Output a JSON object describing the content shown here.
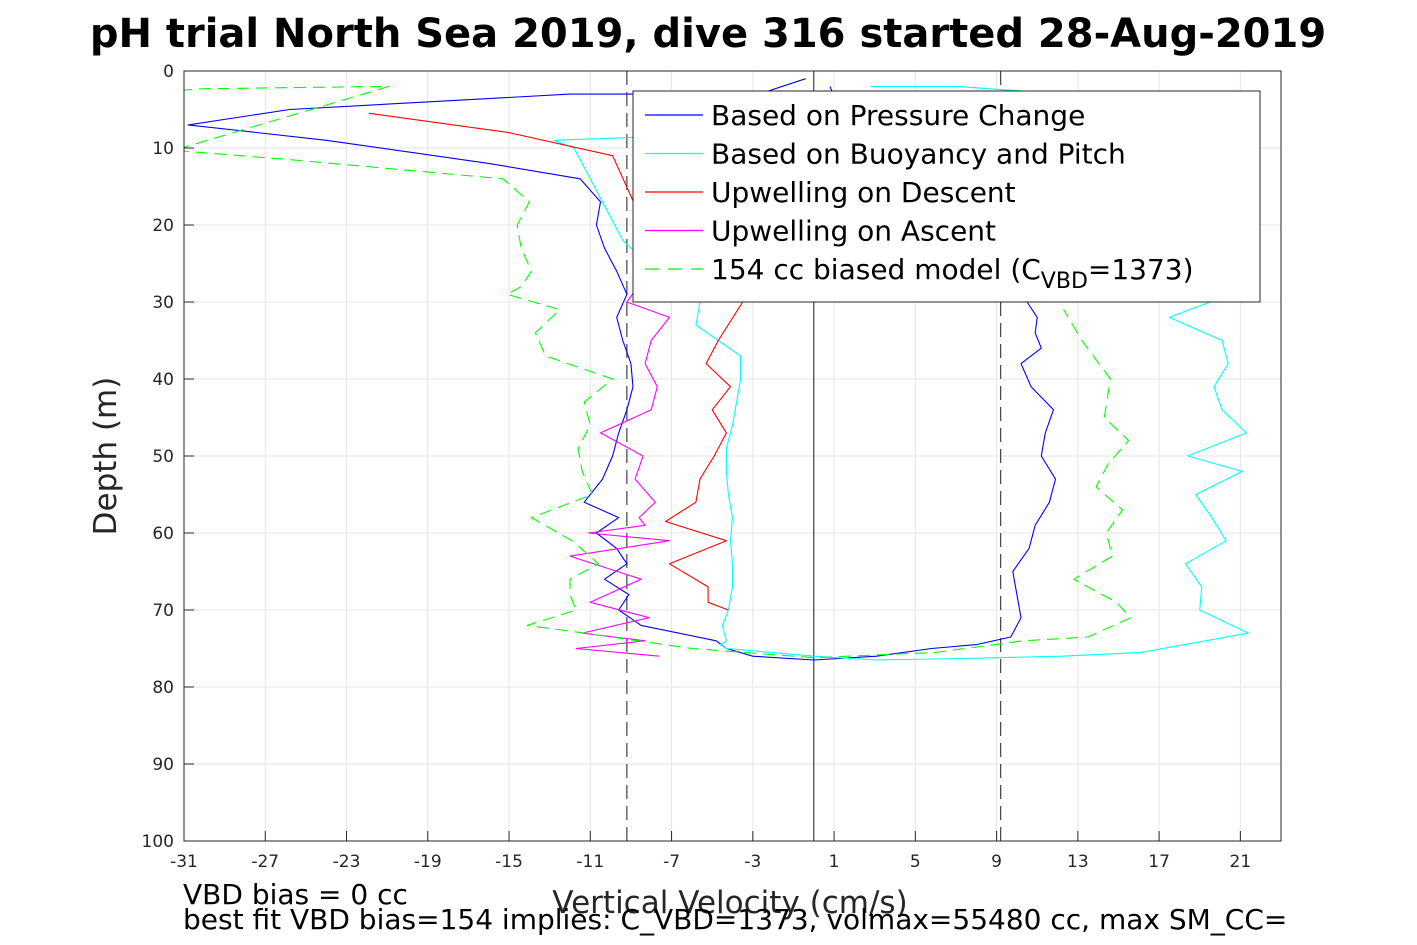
{
  "chart_data": {
    "type": "line",
    "title": "pH trial North Sea 2019, dive 316 started 28-Aug-2019",
    "xlabel": "Vertical Velocity (cm/s)",
    "ylabel": "Depth (m)",
    "xlim": [
      -31,
      23
    ],
    "ylim": [
      0,
      100
    ],
    "y_reversed": true,
    "grid": true,
    "xticks": [
      -31,
      -27,
      -23,
      -19,
      -15,
      -11,
      -7,
      -3,
      1,
      5,
      9,
      13,
      17,
      21
    ],
    "yticks": [
      0,
      10,
      20,
      30,
      40,
      50,
      60,
      70,
      80,
      90,
      100
    ],
    "reference_lines": [
      {
        "x": -9.2,
        "style": "dashed",
        "color": "#404040"
      },
      {
        "x": 0,
        "style": "solid",
        "color": "#404040"
      },
      {
        "x": 9.2,
        "style": "dashed",
        "color": "#404040"
      }
    ],
    "legend_location": "top-right",
    "legend": [
      {
        "label": "Based on Pressure Change",
        "color": "#0000ff",
        "dash": false
      },
      {
        "label": "Based on Buoyancy and Pitch",
        "color": "#00ffff",
        "dash": false
      },
      {
        "label": "Upwelling on Descent",
        "color": "#ff0000",
        "dash": false
      },
      {
        "label": "Upwelling on Ascent",
        "color": "#ff00ff",
        "dash": false
      },
      {
        "label_main": "154 cc biased model (C",
        "label_sub": "VBD",
        "label_tail": "=1373)",
        "color": "#00ff00",
        "dash": true
      }
    ],
    "series": [
      {
        "name": "Based on Pressure Change",
        "color": "#0000ff",
        "dash": false,
        "x": [
          -0.4,
          -2.7,
          -12,
          -25.8,
          -30.8,
          -24,
          -16,
          -11.5,
          -10.5,
          -10.7,
          -10.3,
          -9.7,
          -9.2,
          -9.7,
          -9.4,
          -9.0,
          -8.9,
          -9.2,
          -9.6,
          -9.9,
          -10.4,
          -11.3,
          -9.6,
          -10.7,
          -9.7,
          -9.2,
          -10.3,
          -9.1,
          -9.6,
          -8.5,
          -4.8,
          -4.3,
          -3.0,
          0.0,
          3.1,
          5.8,
          8.0,
          9.7,
          10.2,
          10.0,
          9.8,
          10.6,
          10.9,
          11.6,
          11.9,
          11.2,
          11.4,
          11.8,
          10.7,
          10.2,
          11.2,
          10.9,
          11.0,
          10.5,
          9.8,
          8.6,
          5.2,
          2.0,
          0.8
        ],
        "y": [
          1,
          3,
          3,
          5,
          7,
          9,
          12,
          14,
          17,
          20,
          23,
          26,
          29,
          32,
          35,
          38,
          41,
          44,
          47,
          50,
          53,
          56,
          58,
          60,
          62,
          64,
          66,
          68,
          70,
          72,
          74,
          75,
          76,
          76.5,
          76,
          75,
          74.5,
          73.5,
          71,
          68,
          65,
          62,
          59,
          56,
          53,
          50,
          47,
          44,
          41,
          38,
          36,
          34,
          32,
          30,
          28,
          26,
          22,
          10,
          2
        ]
      },
      {
        "name": "Based on Buoyancy and Pitch",
        "color": "#00ffff",
        "dash": false,
        "x": [
          -7.6,
          -12.8,
          -11.8,
          -9.4,
          -7.4,
          -5.6,
          -5.8,
          -4.7,
          -3.6,
          -3.6,
          -3.8,
          -4.0,
          -4.3,
          -4.3,
          -4.2,
          -4.0,
          -4.1,
          -4.0,
          -4.0,
          -4.2,
          -4.5,
          -4.3,
          -4.6,
          -4.3,
          0.0,
          3.0,
          7.3,
          12.2,
          16.1,
          21.4,
          19.0,
          19.1,
          18.3,
          20.3,
          19.6,
          18.8,
          21.1,
          18.4,
          21.3,
          20.1,
          19.7,
          20.4,
          20.1,
          17.5,
          19.5,
          18.2,
          16.9,
          19.0,
          18.1,
          16.4,
          13.8,
          12.4,
          7.0,
          4.5,
          2.8
        ],
        "y": [
          8.5,
          9,
          10,
          22,
          27,
          30,
          33,
          35,
          37,
          40,
          43,
          46,
          49,
          52,
          55,
          58,
          61,
          64,
          67,
          70,
          72,
          74,
          74.5,
          75,
          76,
          76.5,
          76.3,
          76,
          75.5,
          73,
          70,
          67,
          64,
          61,
          58,
          55,
          52,
          50,
          47,
          44,
          41,
          38,
          35,
          32,
          30,
          27,
          24,
          20,
          15,
          10,
          5,
          3,
          2,
          2,
          2
        ]
      },
      {
        "name": "Upwelling on Descent",
        "color": "#ff0000",
        "dash": false,
        "x": [
          -21.9,
          -15,
          -9.9,
          -7.5,
          -3.5,
          -4.7,
          -5.3,
          -4.1,
          -5.0,
          -4.3,
          -4.9,
          -5.6,
          -5.8,
          -7.3,
          -4.3,
          -7.1,
          -5.2,
          -5.2,
          -4.2
        ],
        "y": [
          5.5,
          8,
          11,
          25,
          30,
          35,
          38,
          41,
          44,
          47,
          50,
          53,
          56,
          58.5,
          61,
          64,
          67,
          69,
          70
        ]
      },
      {
        "name": "Upwelling on Ascent",
        "color": "#ff00ff",
        "dash": false,
        "x": [
          -8.4,
          -9.2,
          -7.1,
          -8.0,
          -8.3,
          -7.7,
          -8.0,
          -10.5,
          -8.4,
          -8.8,
          -7.8,
          -8.6,
          -8.3,
          -11.1,
          -7.1,
          -12.0,
          -8.5,
          -11.0,
          -8.1,
          -11.4,
          -8.3,
          -11.7,
          -7.6
        ],
        "y": [
          27,
          30,
          32,
          35,
          38,
          41,
          44,
          47,
          50,
          53,
          56,
          58,
          59,
          60,
          61,
          63,
          66,
          69,
          71,
          73,
          74,
          75,
          76
        ]
      },
      {
        "name": "154 cc biased model (CVBD=1373)",
        "color": "#00ff00",
        "dash": true,
        "x": [
          -31.2,
          -30.0,
          -20.9,
          -31.5,
          -25.8,
          -15.3,
          -14.0,
          -14.6,
          -14.4,
          -13.9,
          -14.4,
          -15.1,
          -12.5,
          -13.7,
          -13.2,
          -9.9,
          -11.3,
          -11.0,
          -11.6,
          -11.4,
          -10.9,
          -13.9,
          -11.9,
          -10.6,
          -12.0,
          -12.0,
          -11.7,
          -14.1,
          -11.3,
          -6.0,
          0.0,
          6.0,
          10.3,
          13.5,
          15.6,
          14.9,
          12.8,
          14.7,
          14.4,
          15.2,
          13.9,
          14.5,
          15.5,
          14.3,
          14.6,
          13.2,
          12.3
        ],
        "y": [
          2.5,
          2.3,
          2.0,
          10.3,
          11.5,
          14,
          17,
          20,
          23,
          26,
          28,
          29,
          31,
          34,
          37,
          40,
          43,
          46,
          49,
          52,
          55,
          58,
          61,
          64,
          66,
          68,
          70,
          72,
          73,
          75,
          76.2,
          75.5,
          74,
          73.5,
          71,
          69,
          66,
          63,
          60,
          57,
          54,
          51,
          48,
          45,
          40,
          35,
          31
        ]
      }
    ]
  },
  "annotations": {
    "bias_note": "VBD bias = 0 cc",
    "fit_note": "best fit VBD bias=154 implies: C_VBD=1373, volmax=55480 cc, max SM_CC="
  }
}
